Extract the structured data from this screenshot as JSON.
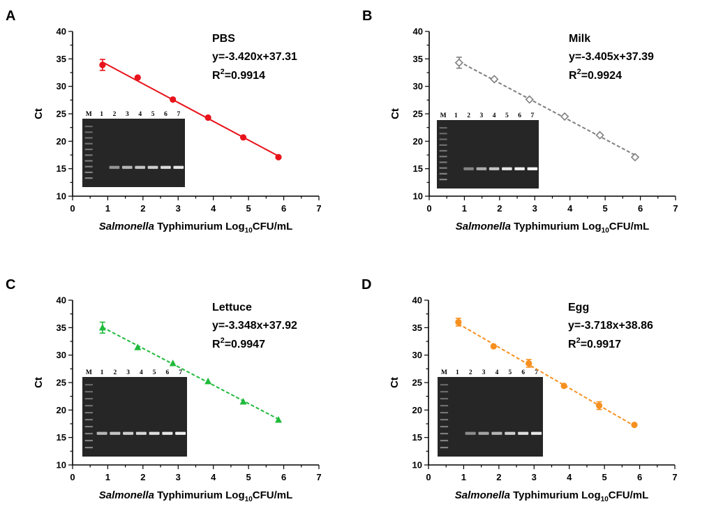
{
  "figure": {
    "panels": [
      "A",
      "B",
      "C",
      "D"
    ]
  },
  "chart_data": [
    {
      "panel_label": "A",
      "type": "scatter",
      "sample": "PBS",
      "equation": "y=-3.420x+37.31",
      "r2_prefix": "R",
      "r2_sup": "2",
      "r2_value": "=0.9914",
      "x": [
        0.85,
        1.85,
        2.85,
        3.85,
        4.85,
        5.85
      ],
      "y": [
        33.9,
        31.6,
        27.6,
        24.3,
        20.7,
        17.1
      ],
      "error": [
        1.0,
        0.3,
        0.3,
        0.2,
        0.2,
        0.2
      ],
      "fit": {
        "slope": -3.42,
        "intercept": 37.31,
        "dashed": false
      },
      "color": "#e8131b",
      "marker": "circle",
      "xlim": [
        0,
        7
      ],
      "ylim": [
        10,
        40
      ],
      "xticks": [
        "0",
        "1",
        "2",
        "3",
        "4",
        "5",
        "6",
        "7"
      ],
      "yticks": [
        "10",
        "15",
        "20",
        "25",
        "30",
        "35",
        "40"
      ],
      "ylabel": "Ct",
      "xlabel_italic": "Salmonella",
      "xlabel_mid": " Typhimurium Log",
      "xlabel_sub": "10",
      "xlabel_end": "CFU/mL",
      "gel": {
        "lane_labels": [
          "M",
          "1",
          "2",
          "3",
          "4",
          "5",
          "6",
          "7"
        ],
        "band_intensity": [
          0.0,
          0.35,
          0.55,
          0.65,
          0.7,
          0.78,
          0.85
        ]
      }
    },
    {
      "panel_label": "B",
      "type": "scatter",
      "sample": "Milk",
      "equation": "y=-3.405x+37.39",
      "r2_prefix": "R",
      "r2_sup": "2",
      "r2_value": "=0.9924",
      "x": [
        0.85,
        1.85,
        2.85,
        3.85,
        4.85,
        5.85
      ],
      "y": [
        34.3,
        31.3,
        27.6,
        24.5,
        21.1,
        17.1
      ],
      "error": [
        1.0,
        0.3,
        0.3,
        0.2,
        0.2,
        0.2
      ],
      "fit": {
        "slope": -3.405,
        "intercept": 37.39,
        "dashed": true
      },
      "color": "#7f7f7f",
      "marker": "diamond-open",
      "xlim": [
        0,
        7
      ],
      "ylim": [
        10,
        40
      ],
      "xticks": [
        "0",
        "1",
        "2",
        "3",
        "4",
        "5",
        "6",
        "7"
      ],
      "yticks": [
        "10",
        "15",
        "20",
        "25",
        "30",
        "35",
        "40"
      ],
      "ylabel": "Ct",
      "xlabel_italic": "Salmonella",
      "xlabel_mid": " Typhimurium Log",
      "xlabel_sub": "10",
      "xlabel_end": "CFU/mL",
      "gel": {
        "lane_labels": [
          "M",
          "1",
          "2",
          "3",
          "4",
          "5",
          "6",
          "7"
        ],
        "band_intensity": [
          0.0,
          0.25,
          0.5,
          0.65,
          0.85,
          0.9,
          0.95
        ]
      }
    },
    {
      "panel_label": "C",
      "type": "scatter",
      "sample": "Lettuce",
      "equation": "y=-3.348x+37.92",
      "r2_prefix": "R",
      "r2_sup": "2",
      "r2_value": "=0.9947",
      "x": [
        0.85,
        1.85,
        2.85,
        3.85,
        4.85,
        5.85
      ],
      "y": [
        35.0,
        31.4,
        28.5,
        25.2,
        21.5,
        18.2
      ],
      "error": [
        1.0,
        0.3,
        0.3,
        0.2,
        0.2,
        0.2
      ],
      "fit": {
        "slope": -3.348,
        "intercept": 37.92,
        "dashed": true
      },
      "color": "#1fba3b",
      "marker": "triangle",
      "xlim": [
        0,
        7
      ],
      "ylim": [
        10,
        40
      ],
      "xticks": [
        "0",
        "1",
        "2",
        "3",
        "4",
        "5",
        "6",
        "7"
      ],
      "yticks": [
        "10",
        "15",
        "20",
        "25",
        "30",
        "35",
        "40"
      ],
      "ylabel": "Ct",
      "xlabel_italic": "Salmonella",
      "xlabel_mid": " Typhimurium Log",
      "xlabel_sub": "10",
      "xlabel_end": "CFU/mL",
      "gel": {
        "lane_labels": [
          "M",
          "1",
          "2",
          "3",
          "4",
          "5",
          "6",
          "7"
        ],
        "band_intensity": [
          0.55,
          0.65,
          0.7,
          0.75,
          0.8,
          0.85,
          0.9
        ]
      }
    },
    {
      "panel_label": "D",
      "type": "scatter",
      "sample": "Egg",
      "equation": "y=-3.718x+38.86",
      "r2_prefix": "R",
      "r2_sup": "2",
      "r2_value": "=0.9917",
      "x": [
        0.85,
        1.85,
        2.85,
        3.85,
        4.85,
        5.85
      ],
      "y": [
        36.0,
        31.6,
        28.5,
        24.4,
        20.8,
        17.3
      ],
      "error": [
        0.7,
        0.2,
        0.7,
        0.2,
        0.7,
        0.2
      ],
      "fit": {
        "slope": -3.718,
        "intercept": 38.86,
        "dashed": true
      },
      "color": "#f7901e",
      "marker": "circle",
      "xlim": [
        0,
        7
      ],
      "ylim": [
        10,
        40
      ],
      "xticks": [
        "0",
        "1",
        "2",
        "3",
        "4",
        "5",
        "6",
        "7"
      ],
      "yticks": [
        "10",
        "15",
        "20",
        "25",
        "30",
        "35",
        "40"
      ],
      "ylabel": "Ct",
      "xlabel_italic": "Salmonella",
      "xlabel_mid": " Typhimurium Log",
      "xlabel_sub": "10",
      "xlabel_end": "CFU/mL",
      "gel": {
        "lane_labels": [
          "M",
          "1",
          "2",
          "3",
          "4",
          "5",
          "6",
          "7"
        ],
        "band_intensity": [
          0.0,
          0.3,
          0.45,
          0.55,
          0.7,
          0.8,
          0.85
        ]
      }
    }
  ]
}
